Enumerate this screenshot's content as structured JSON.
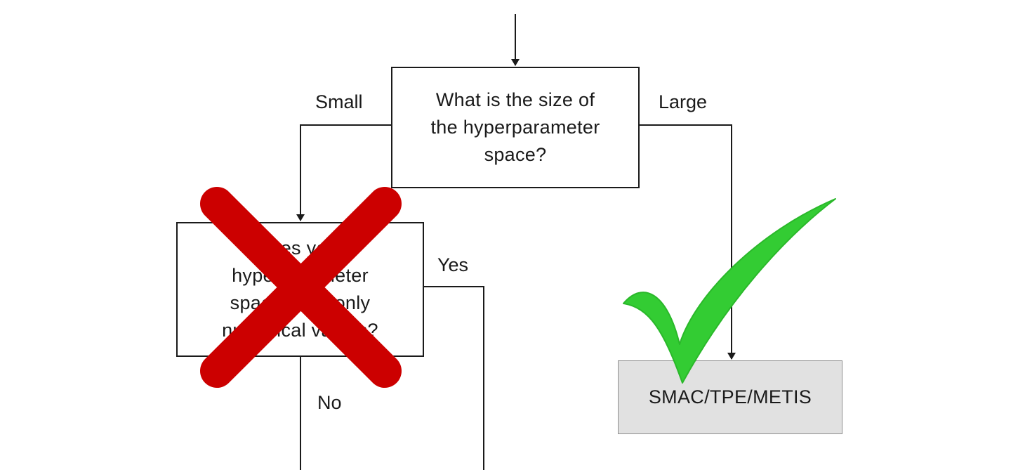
{
  "diagram": {
    "root_question": {
      "lines": [
        "What is the size of",
        "the hyperparameter",
        "space?"
      ]
    },
    "branch_small": "Small",
    "branch_large": "Large",
    "second_question": {
      "lines": [
        "Does your",
        "hyperparameter",
        "space have only",
        "numerical values?"
      ],
      "status": "rejected"
    },
    "branch_yes": "Yes",
    "branch_no": "No",
    "result": {
      "label": "SMAC/TPE/METIS",
      "status": "accepted"
    },
    "colors": {
      "line": "#1a1a1a",
      "reject_mark": "#cc0000",
      "accept_mark": "#33cc33",
      "result_fill": "#e1e1e1"
    },
    "icons": {
      "reject": "red-x-cross-icon",
      "accept": "green-check-icon"
    }
  }
}
